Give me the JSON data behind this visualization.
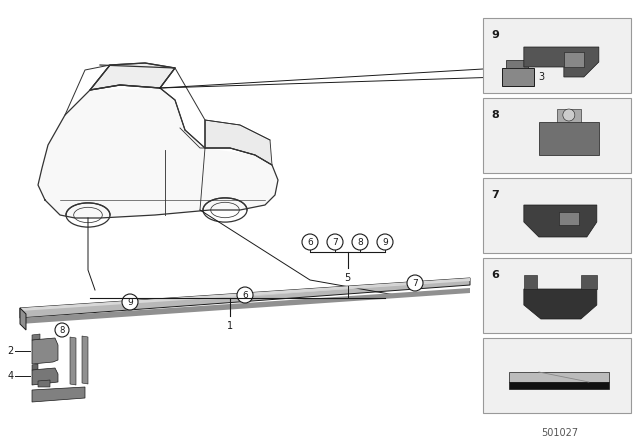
{
  "bg_color": "#ffffff",
  "part_number": "501027",
  "line_color": "#1a1a1a",
  "car_line_color": "#333333",
  "sill_face_color": "#b8b8b8",
  "sill_top_color": "#d8d8d8",
  "sill_edge_color": "#888888",
  "sill_bottom_color": "#909090",
  "clip_color": "#606060",
  "box_bg": "#f0f0f0",
  "box_border": "#999999"
}
